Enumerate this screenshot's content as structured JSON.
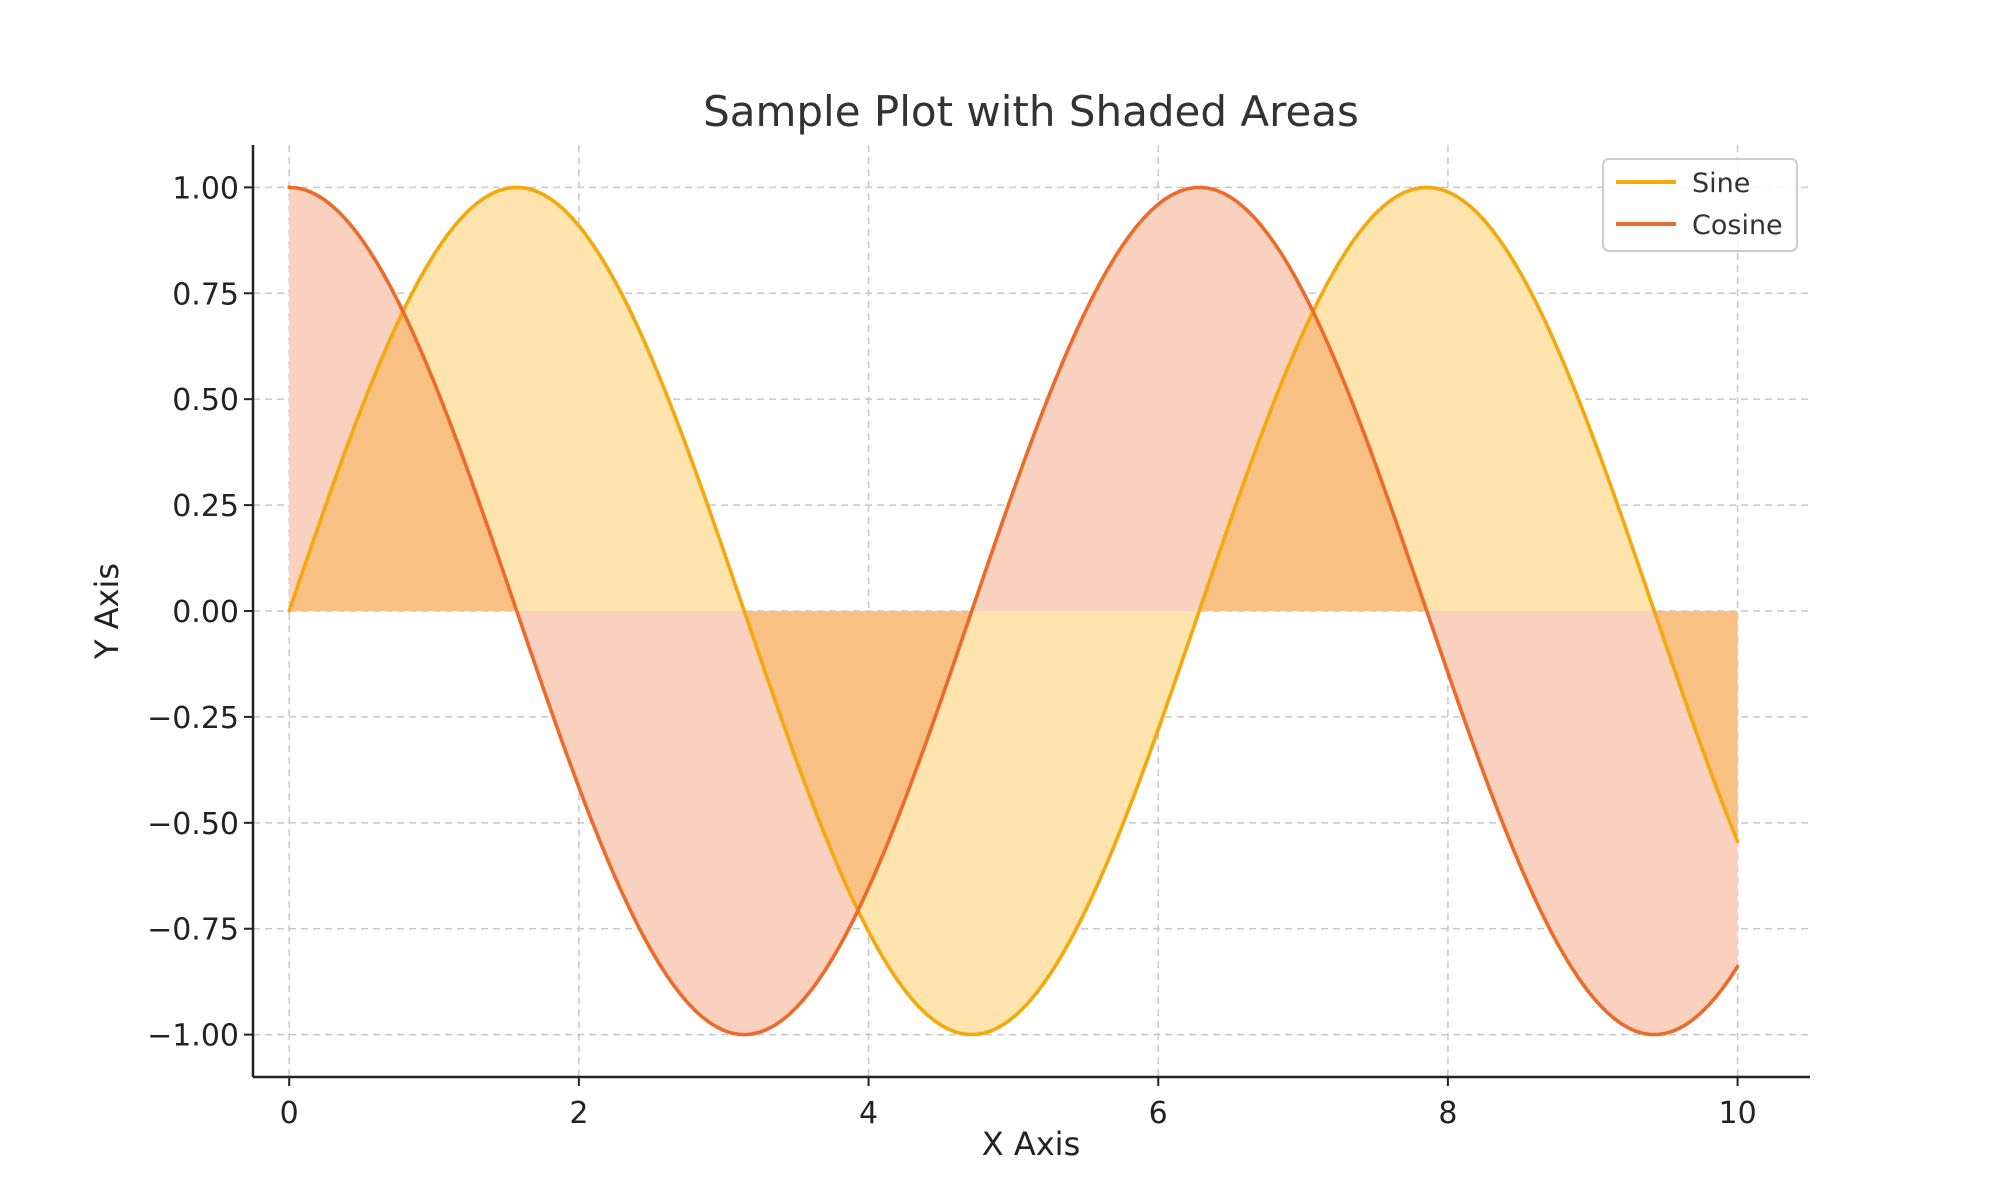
{
  "chart_data": {
    "type": "line",
    "title": "Sample Plot with Shaded Areas",
    "xlabel": "X Axis",
    "ylabel": "Y Axis",
    "xlim": [
      -0.25,
      10.5
    ],
    "ylim": [
      -1.1,
      1.1
    ],
    "x_ticks": [
      0,
      2,
      4,
      6,
      8,
      10
    ],
    "x_tick_labels": [
      "0",
      "2",
      "4",
      "6",
      "8",
      "10"
    ],
    "y_ticks": [
      1.0,
      0.75,
      0.5,
      0.25,
      0.0,
      -0.25,
      -0.5,
      -0.75,
      -1.0
    ],
    "y_tick_labels": [
      "1.00",
      "0.75",
      "0.50",
      "0.25",
      "0.00",
      "−0.25",
      "−0.50",
      "−0.75",
      "−1.00"
    ],
    "grid": true,
    "legend_position": "top-right",
    "x_range": [
      0,
      10
    ],
    "sample_count": 201,
    "series": [
      {
        "name": "Sine",
        "function": "sin(x)",
        "color": "#F5A80C",
        "fill_color": "#FFE4AE",
        "fill_to": 0
      },
      {
        "name": "Cosine",
        "function": "cos(x)",
        "color": "#EE6A2A",
        "fill_color": "#FAD0BE",
        "fill_to": 0
      }
    ],
    "overlap_fill_color": "#F9C084"
  }
}
